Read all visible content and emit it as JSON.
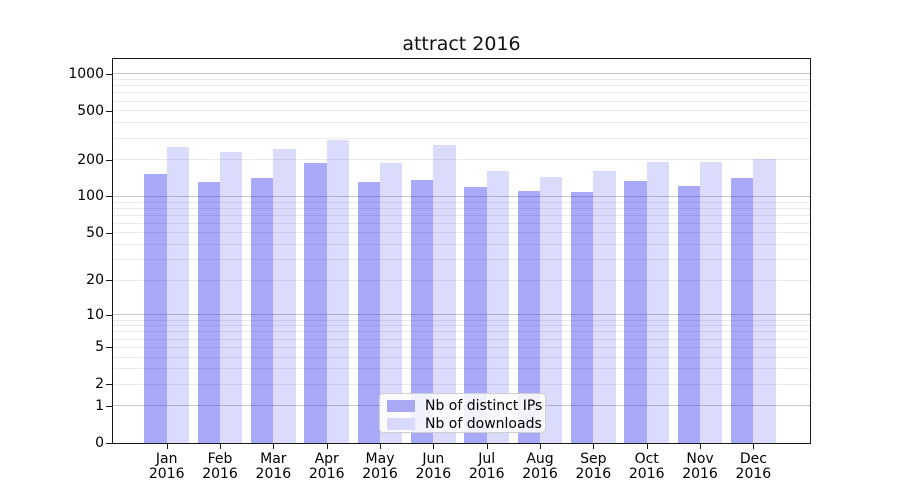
{
  "title": "attract 2016",
  "colors": {
    "distinct_ips_bar": "rgba(40,40,240,0.40)",
    "downloads_bar": "rgba(40,40,240,0.17)",
    "distinct_ips_swatch": "#a9a9f3",
    "downloads_swatch": "#d9d9fb",
    "grid_major": "#c6c6c6",
    "grid_minor": "#eaeaea",
    "spine": "#1a1a1a",
    "text": "#000000"
  },
  "chart_data": {
    "type": "bar",
    "title": "attract 2016",
    "categories": [
      "Jan 2016",
      "Feb 2016",
      "Mar 2016",
      "Apr 2016",
      "May 2016",
      "Jun 2016",
      "Jul 2016",
      "Aug 2016",
      "Sep 2016",
      "Oct 2016",
      "Nov 2016",
      "Dec 2016"
    ],
    "series": [
      {
        "name": "Nb of distinct IPs",
        "values": [
          154,
          131,
          142,
          189,
          132,
          136,
          120,
          110,
          109,
          135,
          122,
          142
        ]
      },
      {
        "name": "Nb of downloads",
        "values": [
          255,
          231,
          244,
          288,
          189,
          262,
          162,
          145,
          161,
          192,
          190,
          202
        ]
      }
    ],
    "xlabel": "",
    "ylabel": "",
    "yscale": "log(1+v)",
    "ylim": [
      0,
      1324
    ],
    "y_tick_labels": [
      0,
      1,
      2,
      5,
      10,
      20,
      50,
      100,
      200,
      500,
      1000
    ],
    "grid": "horizontal, major and minor",
    "legend_position": "lower center"
  }
}
